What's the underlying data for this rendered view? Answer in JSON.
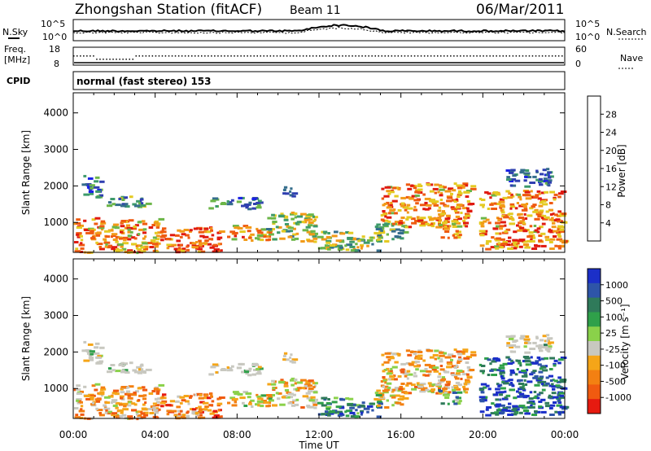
{
  "header": {
    "station": "Zhongshan Station (fitACF)",
    "beam": "Beam 11",
    "date": "06/Mar/2011"
  },
  "sky_panel": {
    "left_label": "N.Sky",
    "right_label": "N.Search",
    "tick_top": "10^5",
    "tick_bottom": "10^0"
  },
  "freq_panel": {
    "left_label_line1": "Freq.",
    "left_label_line2": "[MHz]",
    "right_label": "Nave",
    "left_tick_top": "18",
    "left_tick_bottom": "8",
    "right_tick_top": "60",
    "right_tick_bottom": "0"
  },
  "cpid_panel": {
    "left_label": "CPID",
    "mode_text": "normal (fast stereo) 153"
  },
  "chart_data": [
    {
      "type": "heatmap",
      "name": "power",
      "ylabel": "Slant Range [km]",
      "ylim": [
        180,
        4550
      ],
      "yticks": [
        {
          "value": 1000,
          "label": "1000"
        },
        {
          "value": 2000,
          "label": "2000"
        },
        {
          "value": 3000,
          "label": "3000"
        },
        {
          "value": 4000,
          "label": "4000"
        }
      ],
      "xlim": [
        0,
        24
      ],
      "colorbar": {
        "label": "Power [dB]",
        "range": [
          0,
          32
        ],
        "ticks": [
          "4",
          "8",
          "12",
          "16",
          "20",
          "24",
          "28"
        ],
        "colors": [
          "#1a22e6",
          "#2f3fb0",
          "#356e8c",
          "#3d9a6a",
          "#6cb648",
          "#e4ca22",
          "#f29a18",
          "#ef5a10",
          "#e01a10"
        ]
      }
    },
    {
      "type": "heatmap",
      "name": "velocity",
      "ylabel": "Slant Range [km]",
      "ylim": [
        180,
        4550
      ],
      "yticks": [
        {
          "value": 1000,
          "label": "1000"
        },
        {
          "value": 2000,
          "label": "2000"
        },
        {
          "value": 3000,
          "label": "3000"
        },
        {
          "value": 4000,
          "label": "4000"
        }
      ],
      "xlim": [
        0,
        24
      ],
      "xlabel": "Time UT",
      "xticks": [
        "00:00",
        "04:00",
        "08:00",
        "12:00",
        "16:00",
        "20:00",
        "00:00"
      ],
      "colorbar": {
        "label": "Velocity [m s⁻¹]",
        "ticks": [
          "1000",
          "500",
          "100",
          "25",
          "-25",
          "-100",
          "-500",
          "-1000"
        ],
        "colors": [
          "#1b2fc8",
          "#2e55a8",
          "#2f7a5a",
          "#2fa04a",
          "#8ad14a",
          "#c8c8c0",
          "#f5a518",
          "#f38012",
          "#f05a10",
          "#e61a10"
        ]
      }
    }
  ]
}
